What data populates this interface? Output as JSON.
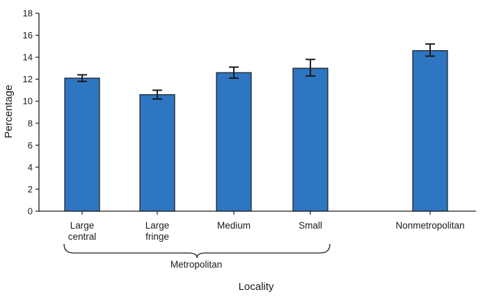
{
  "chart_data": {
    "type": "bar",
    "categories": [
      "Large central",
      "Large fringe",
      "Medium",
      "Small",
      "Nonmetropolitan"
    ],
    "category_lines": [
      [
        "Large",
        "central"
      ],
      [
        "Large",
        "fringe"
      ],
      [
        "Medium"
      ],
      [
        "Small"
      ],
      [
        "Nonmetropolitan"
      ]
    ],
    "values": [
      12.1,
      10.6,
      12.6,
      13.0,
      14.6
    ],
    "error_low": [
      11.8,
      10.2,
      12.1,
      12.3,
      14.1
    ],
    "error_high": [
      12.4,
      11.0,
      13.1,
      13.8,
      15.2
    ],
    "xlabel": "Locality",
    "ylabel": "Percentage",
    "ylim": [
      0,
      18
    ],
    "yticks": [
      0,
      2,
      4,
      6,
      8,
      10,
      12,
      14,
      16,
      18
    ],
    "grid": false,
    "group_label": "Metropolitan",
    "group_members": [
      "Large central",
      "Large fringe",
      "Medium",
      "Small"
    ],
    "bar_color": "#2e75c2",
    "bar_edge_color": "#1a1a1a"
  }
}
